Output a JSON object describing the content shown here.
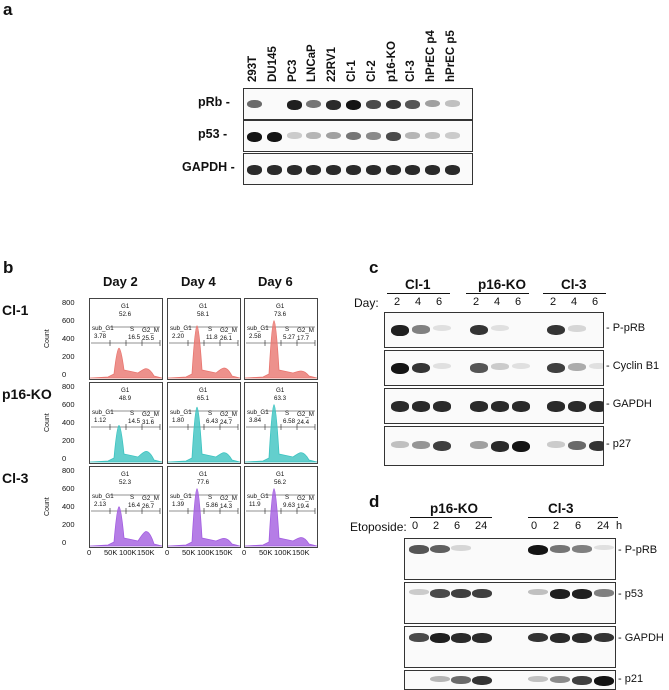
{
  "panel_a": {
    "label": "a",
    "lanes": [
      "293T",
      "DU145",
      "PC3",
      "LNCaP",
      "22RV1",
      "Cl-1",
      "Cl-2",
      "p16-KO",
      "Cl-3",
      "hPrEC p4",
      "hPrEC p5"
    ],
    "rows": [
      {
        "name": "pRb -",
        "intensity": [
          0.6,
          0.0,
          0.95,
          0.55,
          0.9,
          1.0,
          0.75,
          0.85,
          0.7,
          0.35,
          0.2
        ]
      },
      {
        "name": "p53 -",
        "intensity": [
          1.0,
          1.0,
          0.15,
          0.25,
          0.35,
          0.55,
          0.45,
          0.75,
          0.25,
          0.2,
          0.15
        ]
      },
      {
        "name": "GAPDH -",
        "intensity": [
          0.9,
          0.9,
          0.9,
          0.9,
          0.9,
          0.9,
          0.9,
          0.9,
          0.9,
          0.9,
          0.9
        ]
      }
    ]
  },
  "panel_b": {
    "label": "b",
    "days": [
      "Day 2",
      "Day 4",
      "Day 6"
    ],
    "rows": [
      {
        "name": "Cl-1",
        "color": "#e8756f",
        "cells": [
          {
            "G1": "52.6",
            "sub_G1": "3.78",
            "S": "16.5",
            "G2_M": "25.5",
            "peak": 0.42,
            "g2": 0.18
          },
          {
            "G1": "58.1",
            "sub_G1": "2.20",
            "S": "11.8",
            "G2_M": "26.1",
            "peak": 0.85,
            "g2": 0.2
          },
          {
            "G1": "73.6",
            "sub_G1": "2.58",
            "S": "5.27",
            "G2_M": "17.7",
            "peak": 0.95,
            "g2": 0.1
          }
        ]
      },
      {
        "name": "p16-KO",
        "color": "#3cc3c0",
        "cells": [
          {
            "G1": "48.9",
            "sub_G1": "1.12",
            "S": "14.5",
            "G2_M": "31.6",
            "peak": 0.55,
            "g2": 0.22
          },
          {
            "G1": "65.1",
            "sub_G1": "1.80",
            "S": "6.43",
            "G2_M": "24.7",
            "peak": 0.9,
            "g2": 0.18
          },
          {
            "G1": "63.3",
            "sub_G1": "3.84",
            "S": "6.58",
            "G2_M": "24.4",
            "peak": 0.95,
            "g2": 0.18
          }
        ]
      },
      {
        "name": "Cl-3",
        "color": "#a25de0",
        "cells": [
          {
            "G1": "52.3",
            "sub_G1": "2.13",
            "S": "16.4",
            "G2_M": "26.7",
            "peak": 0.6,
            "g2": 0.35
          },
          {
            "G1": "77.6",
            "sub_G1": "1.39",
            "S": "5.86",
            "G2_M": "14.3",
            "peak": 0.95,
            "g2": 0.12
          },
          {
            "G1": "56.2",
            "sub_G1": "11.9",
            "S": "9.63",
            "G2_M": "19.4",
            "peak": 0.95,
            "g2": 0.15
          }
        ]
      }
    ],
    "y_ticks": [
      "800",
      "600",
      "400",
      "200",
      "0"
    ],
    "x_ticks": [
      "0",
      "50K",
      "100K",
      "150K"
    ],
    "y_axis_label": "Count",
    "gate_labels": {
      "g1": "G1",
      "sub": "sub_G1",
      "s": "S",
      "g2": "G2_M"
    }
  },
  "panel_c": {
    "label": "c",
    "groups": [
      "Cl-1",
      "p16-KO",
      "Cl-3"
    ],
    "day_label": "Day:",
    "days": [
      "2",
      "4",
      "6"
    ],
    "rows": [
      {
        "name": "- P-pRB",
        "intensity": [
          0.95,
          0.5,
          0.05,
          0.85,
          0.05,
          0.0,
          0.85,
          0.1,
          0.0
        ]
      },
      {
        "name": "- Cyclin B1",
        "intensity": [
          1.0,
          0.85,
          0.05,
          0.7,
          0.15,
          0.05,
          0.8,
          0.3,
          0.05
        ]
      },
      {
        "name": "- GAPDH",
        "intensity": [
          0.9,
          0.9,
          0.9,
          0.9,
          0.9,
          0.9,
          0.9,
          0.9,
          0.9
        ]
      },
      {
        "name": "- p27",
        "intensity": [
          0.2,
          0.4,
          0.8,
          0.35,
          0.9,
          1.0,
          0.15,
          0.6,
          0.85
        ]
      }
    ]
  },
  "panel_d": {
    "label": "d",
    "groups": [
      "p16-KO",
      "Cl-3"
    ],
    "treatment_label": "Etoposide:",
    "times": [
      "0",
      "2",
      "6",
      "24"
    ],
    "unit": "h",
    "rows": [
      {
        "name": "- P-pRB",
        "intensity": [
          0.7,
          0.65,
          0.1,
          0.0,
          1.0,
          0.55,
          0.5,
          0.05
        ]
      },
      {
        "name": "- p53",
        "intensity": [
          0.15,
          0.75,
          0.8,
          0.8,
          0.2,
          0.95,
          0.95,
          0.5
        ]
      },
      {
        "name": "- GAPDH",
        "intensity": [
          0.75,
          0.95,
          0.9,
          0.9,
          0.85,
          0.9,
          0.9,
          0.85
        ]
      },
      {
        "name": "- p21",
        "intensity": [
          0.0,
          0.25,
          0.6,
          0.85,
          0.2,
          0.45,
          0.8,
          1.0
        ]
      }
    ]
  }
}
